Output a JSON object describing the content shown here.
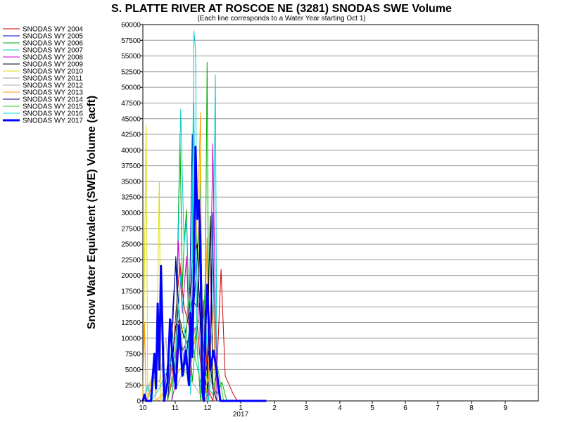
{
  "chart_data": {
    "type": "line",
    "title": "S. PLATTE RIVER AT ROSCOE NE (3281) SNODAS SWE Volume",
    "subtitle": "(Each line corresponds to a Water Year starting Oct 1)",
    "ylabel": "Snow Water Equivalent (SWE) Volume (acft)",
    "xlabel": "",
    "year_label": "2017",
    "x_ticks": [
      "10",
      "11",
      "12",
      "1",
      "2",
      "3",
      "4",
      "5",
      "6",
      "7",
      "8",
      "9"
    ],
    "ylim": [
      0,
      60000
    ],
    "y_ticks": [
      "0",
      "2500",
      "5000",
      "7500",
      "10000",
      "12500",
      "15000",
      "17500",
      "20000",
      "22500",
      "25000",
      "27500",
      "30000",
      "32500",
      "35000",
      "37500",
      "40000",
      "42500",
      "45000",
      "47500",
      "50000",
      "52500",
      "55000",
      "57500",
      "60000"
    ],
    "grid": "horizontal",
    "legend_position": "left",
    "series": [
      {
        "name": "SNODAS WY 2004",
        "color": "#cc0000",
        "values": [
          [
            5.0,
            0
          ],
          [
            5.5,
            3000
          ],
          [
            6.0,
            14000
          ],
          [
            6.5,
            22000
          ],
          [
            7.0,
            15000
          ],
          [
            8.2,
            9000
          ],
          [
            8.6,
            12000
          ],
          [
            9.0,
            6000
          ],
          [
            9.4,
            16000
          ],
          [
            9.9,
            2000
          ],
          [
            10.5,
            0
          ],
          [
            11.0,
            5000
          ],
          [
            11.5,
            21000
          ],
          [
            12.0,
            4000
          ],
          [
            13.0,
            1000
          ],
          [
            13.5,
            0
          ]
        ]
      },
      {
        "name": "SNODAS WY 2005",
        "color": "#0000cc",
        "values": [
          [
            4.5,
            0
          ],
          [
            5.0,
            6000
          ],
          [
            5.5,
            12000
          ],
          [
            6.0,
            22000
          ],
          [
            6.3,
            11000
          ],
          [
            6.8,
            8000
          ],
          [
            7.6,
            10000
          ],
          [
            8.0,
            42500
          ],
          [
            8.2,
            15000
          ],
          [
            8.8,
            28000
          ],
          [
            9.2,
            5000
          ],
          [
            9.9,
            2000
          ],
          [
            10.2,
            6000
          ],
          [
            10.5,
            30000
          ],
          [
            10.8,
            0
          ],
          [
            11.4,
            0
          ]
        ]
      },
      {
        "name": "SNODAS WY 2006",
        "color": "#00aa00",
        "values": [
          [
            5.5,
            0
          ],
          [
            6.0,
            8000
          ],
          [
            6.5,
            42500
          ],
          [
            6.8,
            18000
          ],
          [
            7.0,
            25000
          ],
          [
            7.3,
            30500
          ],
          [
            7.6,
            14000
          ],
          [
            8.0,
            3000
          ],
          [
            8.5,
            11000
          ],
          [
            9.0,
            0
          ],
          [
            9.6,
            20000
          ],
          [
            9.8,
            54000
          ],
          [
            10.0,
            10000
          ],
          [
            10.5,
            3000
          ],
          [
            11.0,
            1000
          ],
          [
            11.6,
            3000
          ],
          [
            12.2,
            0
          ]
        ]
      },
      {
        "name": "SNODAS WY 2007",
        "color": "#00cccc",
        "values": [
          [
            5.0,
            0
          ],
          [
            5.6,
            11000
          ],
          [
            6.0,
            5000
          ],
          [
            6.6,
            46500
          ],
          [
            7.0,
            25000
          ],
          [
            7.3,
            28500
          ],
          [
            7.8,
            1000
          ],
          [
            8.2,
            59000
          ],
          [
            8.4,
            56000
          ],
          [
            8.6,
            12000
          ],
          [
            9.0,
            36500
          ],
          [
            9.2,
            8000
          ],
          [
            9.6,
            15000
          ],
          [
            10.0,
            0
          ],
          [
            10.4,
            7000
          ],
          [
            10.8,
            52000
          ],
          [
            11.0,
            0
          ]
        ]
      },
      {
        "name": "SNODAS WY 2008",
        "color": "#cc00cc",
        "values": [
          [
            5.5,
            0
          ],
          [
            6.0,
            3000
          ],
          [
            6.3,
            25500
          ],
          [
            6.8,
            14000
          ],
          [
            7.3,
            23000
          ],
          [
            7.8,
            4000
          ],
          [
            8.0,
            11000
          ],
          [
            8.6,
            12000
          ],
          [
            9.0,
            18500
          ],
          [
            9.4,
            0
          ],
          [
            10.0,
            1000
          ],
          [
            10.5,
            41000
          ],
          [
            10.8,
            15500
          ],
          [
            11.0,
            0
          ]
        ]
      },
      {
        "name": "SNODAS WY 2009",
        "color": "#000000",
        "values": [
          [
            5.0,
            0
          ],
          [
            5.6,
            7000
          ],
          [
            6.0,
            12000
          ],
          [
            6.5,
            13000
          ],
          [
            7.0,
            10000
          ],
          [
            7.6,
            14000
          ],
          [
            8.0,
            22000
          ],
          [
            8.6,
            25000
          ],
          [
            9.0,
            11000
          ],
          [
            9.4,
            6000
          ],
          [
            9.8,
            0
          ],
          [
            10.0,
            19000
          ],
          [
            10.2,
            29500
          ],
          [
            10.5,
            2000
          ],
          [
            11.0,
            0
          ]
        ]
      },
      {
        "name": "SNODAS WY 2010",
        "color": "#dddd00",
        "values": [
          [
            2.0,
            0
          ],
          [
            2.4,
            44000
          ],
          [
            2.6,
            0
          ],
          [
            3.2,
            5000
          ],
          [
            3.6,
            1000
          ],
          [
            4.0,
            35000
          ],
          [
            4.2,
            0
          ],
          [
            5.0,
            3000
          ],
          [
            6.0,
            9000
          ],
          [
            7.0,
            12000
          ],
          [
            7.6,
            3000
          ],
          [
            8.0,
            7000
          ],
          [
            8.6,
            13000
          ],
          [
            9.0,
            40500
          ],
          [
            9.2,
            4000
          ],
          [
            9.4,
            13000
          ],
          [
            9.8,
            0
          ]
        ]
      },
      {
        "name": "SNODAS WY 2011",
        "color": "#999999",
        "values": [
          [
            5.0,
            0
          ],
          [
            5.4,
            5000
          ],
          [
            6.0,
            8000
          ],
          [
            6.5,
            13000
          ],
          [
            7.0,
            6000
          ],
          [
            7.6,
            18000
          ],
          [
            8.0,
            10000
          ],
          [
            8.8,
            13000
          ],
          [
            9.2,
            0
          ],
          [
            10.0,
            4000
          ],
          [
            10.5,
            2500
          ],
          [
            11.0,
            0
          ]
        ]
      },
      {
        "name": "SNODAS WY 2012",
        "color": "#aaaaaa",
        "values": [
          [
            2.0,
            0
          ],
          [
            2.6,
            2000
          ],
          [
            3.2,
            4000
          ],
          [
            4.0,
            3000
          ],
          [
            4.8,
            10000
          ],
          [
            5.2,
            3000
          ],
          [
            6.0,
            2000
          ],
          [
            7.0,
            5000
          ],
          [
            8.0,
            3000
          ],
          [
            9.0,
            1000
          ],
          [
            10.0,
            0
          ]
        ]
      },
      {
        "name": "SNODAS WY 2013",
        "color": "#ff9900",
        "values": [
          [
            2.0,
            0
          ],
          [
            2.2,
            12500
          ],
          [
            2.4,
            0
          ],
          [
            3.0,
            2000
          ],
          [
            3.4,
            7000
          ],
          [
            3.6,
            0
          ],
          [
            5.0,
            2000
          ],
          [
            6.0,
            4000
          ],
          [
            7.0,
            6000
          ],
          [
            8.0,
            12000
          ],
          [
            8.8,
            36000
          ],
          [
            9.0,
            46000
          ],
          [
            9.1,
            20000
          ],
          [
            9.4,
            5000
          ],
          [
            9.8,
            26000
          ],
          [
            10.0,
            3000
          ],
          [
            10.6,
            16000
          ],
          [
            10.8,
            0
          ]
        ]
      },
      {
        "name": "SNODAS WY 2014",
        "color": "#000080",
        "values": [
          [
            5.0,
            0
          ],
          [
            5.5,
            8000
          ],
          [
            6.0,
            23000
          ],
          [
            6.4,
            14000
          ],
          [
            6.8,
            5000
          ],
          [
            7.2,
            6000
          ],
          [
            7.6,
            11000
          ],
          [
            8.0,
            16000
          ],
          [
            8.6,
            15000
          ],
          [
            9.0,
            28000
          ],
          [
            9.3,
            10000
          ],
          [
            9.6,
            4000
          ],
          [
            10.0,
            8000
          ],
          [
            10.5,
            2000
          ],
          [
            11.0,
            0
          ]
        ]
      },
      {
        "name": "SNODAS WY 2015",
        "color": "#33cc33",
        "values": [
          [
            5.0,
            0
          ],
          [
            5.5,
            2500
          ],
          [
            6.0,
            6000
          ],
          [
            6.5,
            9000
          ],
          [
            7.0,
            4000
          ],
          [
            7.5,
            16000
          ],
          [
            8.0,
            9000
          ],
          [
            8.5,
            6000
          ],
          [
            9.0,
            3000
          ],
          [
            9.5,
            6000
          ],
          [
            10.0,
            2000
          ],
          [
            10.5,
            1000
          ],
          [
            11.0,
            6000
          ],
          [
            11.4,
            3000
          ],
          [
            11.8,
            0
          ]
        ]
      },
      {
        "name": "SNODAS WY 2016",
        "color": "#00dddd",
        "values": [
          [
            2.0,
            0
          ],
          [
            2.6,
            2500
          ],
          [
            3.0,
            0
          ],
          [
            4.0,
            2000
          ],
          [
            5.0,
            5000
          ],
          [
            6.0,
            8000
          ],
          [
            6.6,
            20000
          ],
          [
            7.0,
            12000
          ],
          [
            7.4,
            6000
          ],
          [
            8.0,
            20000
          ],
          [
            8.2,
            47500
          ],
          [
            8.4,
            20000
          ],
          [
            8.6,
            8000
          ],
          [
            9.0,
            2000
          ],
          [
            9.6,
            1500
          ],
          [
            10.0,
            0
          ]
        ]
      },
      {
        "name": "SNODAS WY 2017",
        "color": "#0000ff",
        "bold": true,
        "values": [
          [
            2.0,
            0
          ],
          [
            2.2,
            1000
          ],
          [
            2.4,
            0
          ],
          [
            3.0,
            0
          ],
          [
            3.4,
            7500
          ],
          [
            3.6,
            2000
          ],
          [
            3.8,
            15500
          ],
          [
            4.0,
            5000
          ],
          [
            4.2,
            21500
          ],
          [
            4.4,
            10000
          ],
          [
            4.6,
            0
          ],
          [
            5.0,
            3000
          ],
          [
            5.3,
            13000
          ],
          [
            5.6,
            7000
          ],
          [
            6.0,
            2000
          ],
          [
            6.4,
            12000
          ],
          [
            6.8,
            4000
          ],
          [
            7.2,
            8000
          ],
          [
            7.6,
            2500
          ],
          [
            7.8,
            14000
          ],
          [
            8.0,
            7000
          ],
          [
            8.2,
            21000
          ],
          [
            8.4,
            40500
          ],
          [
            8.6,
            29000
          ],
          [
            8.8,
            32000
          ],
          [
            9.0,
            25000
          ],
          [
            9.2,
            2000
          ],
          [
            9.4,
            0
          ],
          [
            9.6,
            12000
          ],
          [
            9.8,
            18500
          ],
          [
            10.0,
            12000
          ],
          [
            10.2,
            5000
          ],
          [
            10.6,
            8000
          ],
          [
            11.0,
            4500
          ],
          [
            11.4,
            0
          ],
          [
            11.8,
            0
          ],
          [
            16.8,
            0
          ],
          [
            17.0,
            0
          ]
        ]
      }
    ]
  }
}
